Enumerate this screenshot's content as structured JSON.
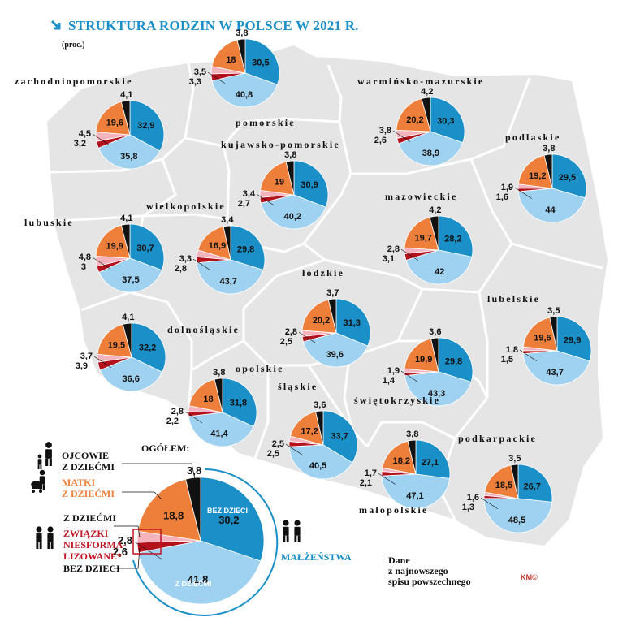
{
  "title": "STRUKTURA RODZIN W POLSCE W 2021 R.",
  "subtitle": "(proc.)",
  "colors": {
    "marriage_no_children": "#1a8fc8",
    "marriage_with_children": "#9fd2f1",
    "cohab_no_children": "#b3121c",
    "cohab_with_children": "#f4b3bd",
    "mothers_with_children": "#ee7f3a",
    "fathers_with_children": "#111111",
    "map_fill": "#e5e5e5",
    "map_border": "#ffffff",
    "title": "#1a8fc8"
  },
  "chart_data": {
    "type": "pie",
    "slice_order": [
      "malzenstwa_bez_dzieci",
      "malzenstwa_z_dziecmi",
      "zwiazki_bez_dzieci",
      "zwiazki_z_dziecmi",
      "matki_z_dziecmi",
      "ojcowie_z_dziecmi"
    ],
    "regions": [
      {
        "name": "zachodniopomorskie",
        "values": [
          32.9,
          35.8,
          3.2,
          4.5,
          19.6,
          4.1
        ]
      },
      {
        "name": "pomorskie",
        "values": [
          30.5,
          40.8,
          3.3,
          3.5,
          18,
          3.8
        ]
      },
      {
        "name": "warmińsko-mazurskie",
        "values": [
          30.3,
          38.9,
          2.6,
          3.8,
          20.2,
          4.2
        ]
      },
      {
        "name": "kujawsko-pomorskie",
        "values": [
          30.9,
          40.2,
          2.7,
          3.4,
          19,
          3.8
        ]
      },
      {
        "name": "podlaskie",
        "values": [
          29.5,
          44,
          1.6,
          1.9,
          19.2,
          3.8
        ]
      },
      {
        "name": "lubuskie",
        "values": [
          30.7,
          37.5,
          3,
          4.8,
          19.9,
          4.1
        ]
      },
      {
        "name": "wielkopolskie",
        "values": [
          29.8,
          43.7,
          2.8,
          3.3,
          16.9,
          3.4
        ]
      },
      {
        "name": "mazowieckie",
        "values": [
          28.2,
          42,
          3.1,
          2.8,
          19.7,
          4.2
        ]
      },
      {
        "name": "łódzkie",
        "values": [
          31.3,
          39.6,
          2.5,
          2.8,
          20.2,
          3.7
        ]
      },
      {
        "name": "lubelskie",
        "values": [
          29.9,
          43.7,
          1.5,
          1.8,
          19.6,
          3.5
        ]
      },
      {
        "name": "dolnośląskie",
        "values": [
          32.2,
          36.6,
          3.9,
          3.7,
          19.5,
          4.1
        ]
      },
      {
        "name": "opolskie",
        "values": [
          31.8,
          41.4,
          2.2,
          2.8,
          18,
          3.8
        ]
      },
      {
        "name": "świętokrzyskie",
        "values": [
          29.8,
          43.3,
          1.4,
          1.9,
          19.9,
          3.6
        ]
      },
      {
        "name": "śląskie",
        "values": [
          33.7,
          40.5,
          2.5,
          2.5,
          17.2,
          3.6
        ]
      },
      {
        "name": "małopolskie",
        "values": [
          27.1,
          47.1,
          2.1,
          1.7,
          18.2,
          3.8
        ]
      },
      {
        "name": "podkarpackie",
        "values": [
          26.7,
          48.5,
          1.3,
          1.6,
          18.5,
          3.5
        ]
      }
    ],
    "overall": {
      "name": "OGÓŁEM:",
      "values": [
        30.2,
        41.8,
        2.6,
        2.8,
        18.8,
        3.8
      ]
    }
  },
  "legend": {
    "fathers": "OJCOWIE\nZ DZIEĆMI",
    "mothers": "MATKI\nZ DZIEĆMI",
    "cohab_with": "Z DZIEĆMI",
    "cohab_title": "ZWIĄZKI\nNIESFORMA-\nLIZOWANE*",
    "cohab_without": "BEZ DZIECI",
    "marriages": "MAŁŻEŃSTWA",
    "marriage_without": "BEZ DZIECI",
    "marriage_with": "Z DZIEĆMI"
  },
  "note": "Dane\nz najnowszego\nspisu powszechnego",
  "signature": "KM©"
}
